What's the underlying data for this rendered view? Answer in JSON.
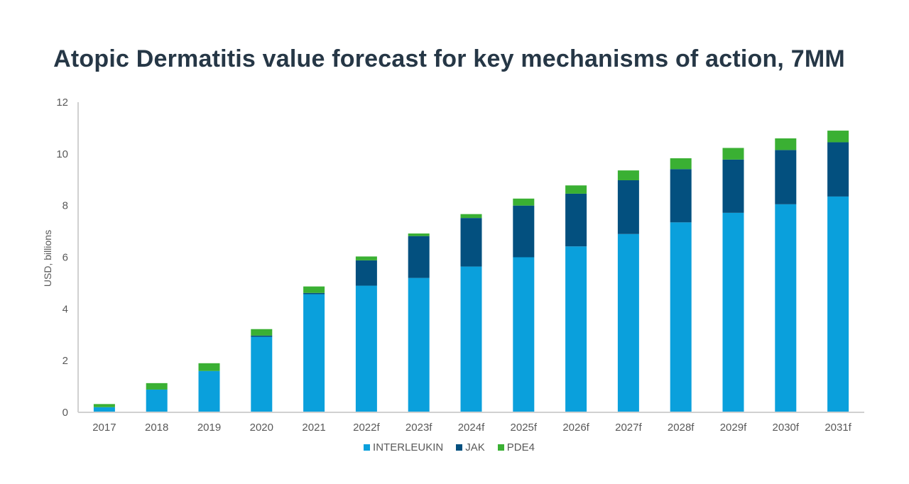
{
  "chart_data": {
    "type": "bar",
    "stacked": true,
    "title": "Atopic Dermatitis value forecast for key mechanisms of action, 7MM",
    "xlabel": "",
    "ylabel": "USD, billions",
    "ylim": [
      0,
      12
    ],
    "yticks": [
      "0",
      "2",
      "4",
      "6",
      "8",
      "10",
      "12"
    ],
    "grid": false,
    "legend_position": "bottom",
    "categories": [
      "2017",
      "2018",
      "2019",
      "2020",
      "2021",
      "2022f",
      "2023f",
      "2024f",
      "2025f",
      "2026f",
      "2027f",
      "2028f",
      "2029f",
      "2030f",
      "2031f"
    ],
    "series": [
      {
        "name": "INTERLEUKIN",
        "color": "#0aa0dc",
        "values": [
          0.2,
          0.88,
          1.6,
          2.92,
          4.57,
          4.9,
          5.2,
          5.64,
          6.0,
          6.42,
          6.9,
          7.35,
          7.72,
          8.05,
          8.35
        ]
      },
      {
        "name": "JAK",
        "color": "#03507f",
        "values": [
          0.0,
          0.0,
          0.0,
          0.05,
          0.05,
          0.98,
          1.62,
          1.88,
          2.0,
          2.04,
          2.08,
          2.06,
          2.06,
          2.1,
          2.1
        ]
      },
      {
        "name": "PDE4",
        "color": "#3ab033",
        "values": [
          0.12,
          0.25,
          0.3,
          0.25,
          0.25,
          0.15,
          0.1,
          0.15,
          0.27,
          0.32,
          0.38,
          0.42,
          0.45,
          0.45,
          0.45
        ]
      }
    ]
  }
}
